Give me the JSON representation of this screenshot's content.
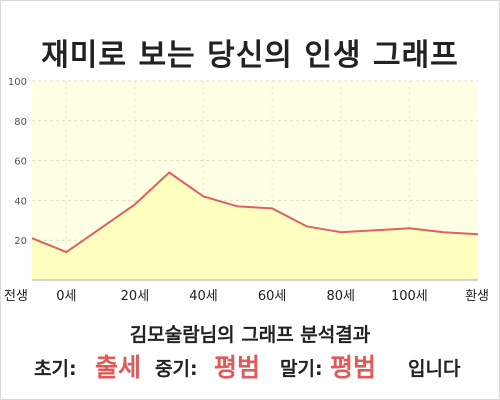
{
  "title": "재미로 보는 당신의 인생 그래프",
  "subtitle": "김모술람님의 그래프 분석결과",
  "result": {
    "early_label": "초기:",
    "early_value": "출세",
    "middle_label": "중기:",
    "middle_value": "평범",
    "late_label": "말기:",
    "late_value": "평범",
    "suffix": "입니다"
  },
  "colors": {
    "line": "#e06060",
    "fill": "#ffffc0",
    "plot_bg": "#ffffe6",
    "accent": "#e05a5a"
  },
  "chart_data": {
    "type": "area",
    "title": "재미로 보는 당신의 인생 그래프",
    "x": [
      -10,
      0,
      10,
      20,
      30,
      40,
      50,
      60,
      70,
      80,
      90,
      100,
      110,
      120
    ],
    "x_tick_values": [
      -10,
      0,
      20,
      40,
      60,
      80,
      100,
      120
    ],
    "x_tick_labels": [
      "전생",
      "0세",
      "20세",
      "40세",
      "60세",
      "80세",
      "100세",
      "환생"
    ],
    "series": [
      {
        "values": [
          21,
          14,
          26,
          38,
          54,
          42,
          37,
          36,
          27,
          24,
          25,
          26,
          24,
          23
        ]
      }
    ],
    "xlim": [
      -10,
      120
    ],
    "ylim": [
      0,
      100
    ],
    "y_ticks": [
      20,
      40,
      60,
      80,
      100
    ],
    "grid": true,
    "legend": "none"
  }
}
